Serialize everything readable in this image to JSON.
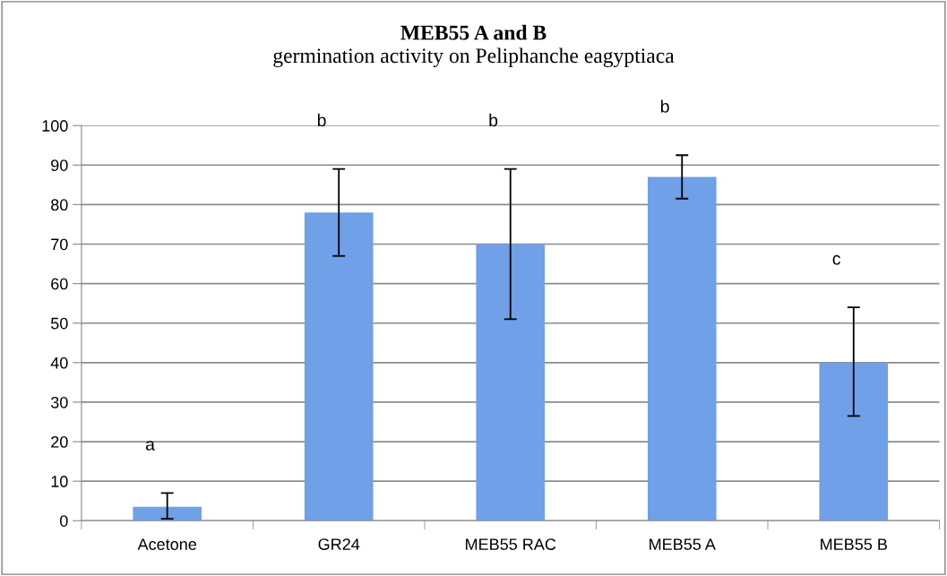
{
  "chart_data": {
    "type": "bar",
    "title": "MEB55 A and B",
    "subtitle": "germination activity on Peliphanche eagyptiaca",
    "categories": [
      "Acetone",
      "GR24",
      "MEB55 RAC",
      "MEB55 A",
      "MEB55 B"
    ],
    "values": [
      3.5,
      78,
      70,
      87,
      40
    ],
    "errors": [
      [
        0.5,
        7
      ],
      [
        67,
        89
      ],
      [
        51,
        89
      ],
      [
        81.5,
        92.5
      ],
      [
        26.5,
        54
      ]
    ],
    "color": "#6fa0e8",
    "ylim": [
      0,
      100
    ],
    "yticks": [
      0,
      10,
      20,
      30,
      40,
      50,
      60,
      70,
      80,
      90,
      100
    ],
    "grid": "y",
    "annotations": [
      "a",
      "b",
      "b",
      "b",
      "c"
    ]
  }
}
